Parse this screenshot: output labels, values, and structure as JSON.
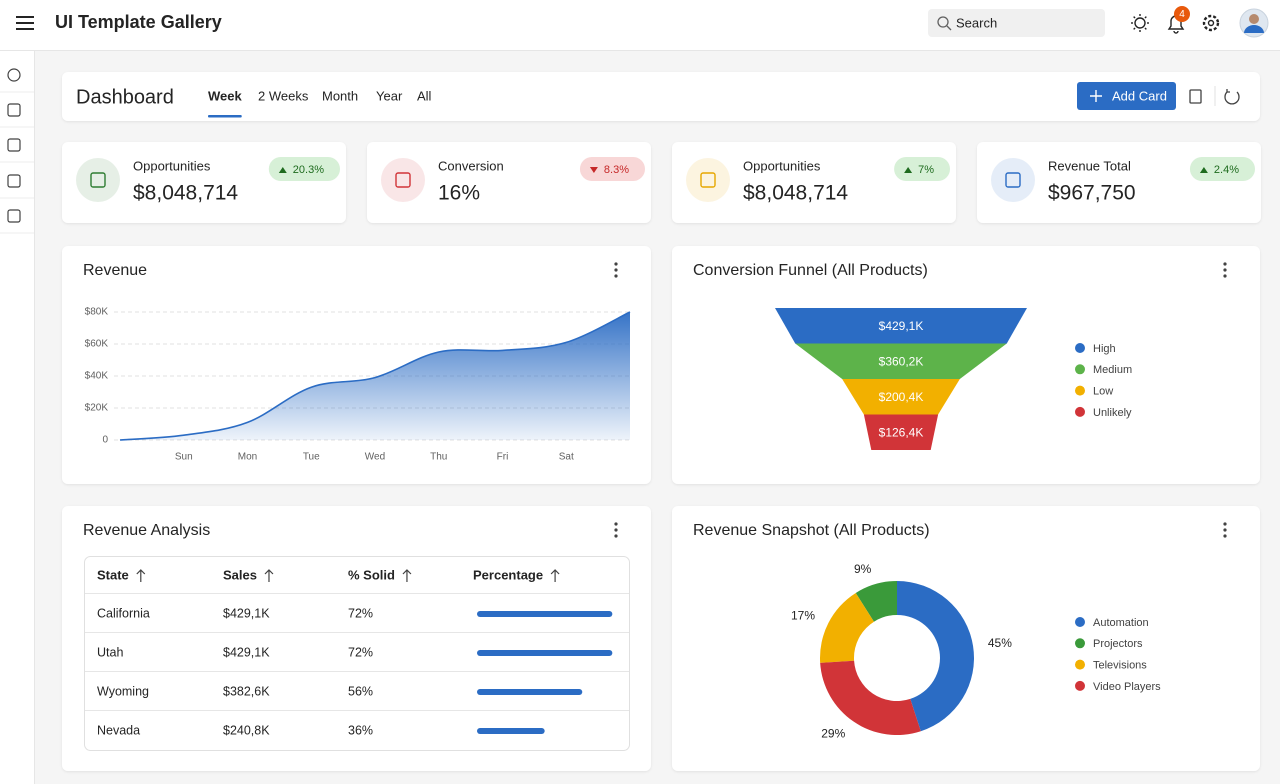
{
  "header": {
    "title": "UI Template Gallery",
    "search": "Search",
    "notifications": "4"
  },
  "toolbar": {
    "title": "Dashboard",
    "tabs": [
      "Week",
      "2 Weeks",
      "Month",
      "Year",
      "All"
    ],
    "active_tab": 0,
    "button": "Add Card"
  },
  "kpis": [
    {
      "label": "Opportunities",
      "value": "$8,048,714",
      "change": "20.3%",
      "trend": "up",
      "color": "#2e7d32"
    },
    {
      "label": "Conversion",
      "value": "16%",
      "change": "8.3%",
      "trend": "down",
      "color": "#d13438"
    },
    {
      "label": "Opportunities",
      "value": "$8,048,714",
      "change": "7%",
      "trend": "up",
      "color": "#e6a700"
    },
    {
      "label": "Revenue Total",
      "value": "$967,750",
      "change": "2.4%",
      "trend": "up",
      "color": "#2b6cc4"
    }
  ],
  "chart_data": [
    {
      "type": "area",
      "title": "Revenue",
      "categories": [
        null,
        "Sun",
        "Mon",
        "Tue",
        "Wed",
        "Thu",
        "Fri",
        "Sat",
        null
      ],
      "values": [
        0,
        3000,
        11000,
        33000,
        39000,
        55000,
        56000,
        61000,
        80000
      ],
      "color": "#2b6cc4",
      "ylim": [
        0,
        80000
      ],
      "yticks": [
        0,
        {
          "value": 20000,
          "label": "$20K"
        },
        {
          "value": 40000,
          "label": "$40K"
        },
        {
          "value": 60000,
          "label": "$60K"
        },
        {
          "value": 80000,
          "label": "$80K"
        }
      ],
      "grid": true
    },
    {
      "type": "funnel",
      "title": "Conversion Funnel (All Products)",
      "categories": [
        "High",
        "Medium",
        "Low",
        "Unlikely"
      ],
      "values": [
        429100,
        360200,
        200400,
        126400
      ],
      "value_labels": [
        "$429,1K",
        "$360,2K",
        "$200,4K",
        "$126,4K"
      ],
      "colors": [
        "#2b6cc4",
        "#5db34a",
        "#f2b000",
        "#d13438"
      ],
      "legend": "right"
    },
    {
      "type": "donut",
      "title": "Revenue Snapshot (All Products)",
      "categories": [
        "Automation",
        "Projectors",
        "Televisions",
        "Video Players"
      ],
      "values": [
        45,
        9,
        17,
        29
      ],
      "value_labels": [
        "45%",
        "9%",
        "17%",
        "29%"
      ],
      "colors": [
        "#2b6cc4",
        "#3a9a3a",
        "#f2b000",
        "#d13438"
      ],
      "legend": "right"
    }
  ],
  "table": {
    "title": "Revenue Analysis",
    "columns": [
      "State",
      "Sales",
      "% Solid",
      "Percentage"
    ],
    "rows": [
      [
        "California",
        "$429,1K",
        "72%"
      ],
      [
        "Utah",
        "$429,1K",
        "72%"
      ],
      [
        "Wyoming",
        "$382,6K",
        "56%"
      ],
      [
        "Nevada",
        "$240,8K",
        "36%"
      ]
    ],
    "percentage": [
      72,
      72,
      56,
      36
    ],
    "color": "#2b6cc4"
  }
}
